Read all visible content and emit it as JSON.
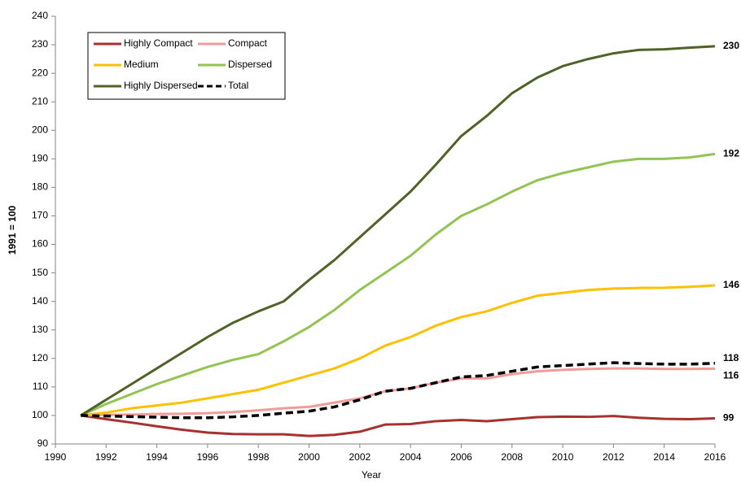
{
  "chart_data": {
    "type": "line",
    "x_label": "Year",
    "y_label": "1991 = 100",
    "x": [
      1991,
      1992,
      1993,
      1994,
      1995,
      1996,
      1997,
      1998,
      1999,
      2000,
      2001,
      2002,
      2003,
      2004,
      2005,
      2006,
      2007,
      2008,
      2009,
      2010,
      2011,
      2012,
      2013,
      2014,
      2015,
      2016
    ],
    "xlim": [
      1990,
      2016
    ],
    "xticks": [
      1990,
      1992,
      1994,
      1996,
      1998,
      2000,
      2002,
      2004,
      2006,
      2008,
      2010,
      2012,
      2014,
      2016
    ],
    "ylim": [
      90,
      240
    ],
    "yticks": [
      90,
      100,
      110,
      120,
      130,
      140,
      150,
      160,
      170,
      180,
      190,
      200,
      210,
      220,
      230,
      240
    ],
    "grid": false,
    "legend": "upper left",
    "series": [
      {
        "name": "Highly Compact",
        "color": "#a6312f",
        "dashed": false,
        "end_label": "99",
        "values": [
          100,
          98.7,
          97.5,
          96.2,
          95,
          94,
          93.5,
          93.4,
          93.4,
          92.8,
          93.2,
          94.3,
          96.8,
          97,
          98,
          98.4,
          98,
          98.7,
          99.4,
          99.6,
          99.5,
          99.8,
          99.2,
          98.8,
          98.7,
          99
        ]
      },
      {
        "name": "Compact",
        "color": "#f19c98",
        "dashed": false,
        "end_label": "116",
        "values": [
          100,
          100.2,
          100.3,
          100.5,
          100.6,
          100.8,
          101.2,
          101.8,
          102.5,
          103,
          104.5,
          106,
          108.5,
          109.5,
          111.5,
          113,
          113,
          114.5,
          115.5,
          116,
          116.3,
          116.5,
          116.5,
          116.3,
          116.3,
          116.4
        ]
      },
      {
        "name": "Medium",
        "color": "#ffc000",
        "dashed": false,
        "end_label": "146",
        "values": [
          100,
          101,
          102.5,
          103.5,
          104.5,
          106,
          107.5,
          109,
          111.5,
          114,
          116.5,
          120,
          124.5,
          127.5,
          131.5,
          134.5,
          136.5,
          139.5,
          142,
          143,
          144,
          144.5,
          144.7,
          144.8,
          145.1,
          145.6
        ]
      },
      {
        "name": "Dispersed",
        "color": "#92c353",
        "dashed": false,
        "end_label": "192",
        "values": [
          100,
          104,
          107.5,
          111,
          114,
          117,
          119.5,
          121.5,
          126,
          131,
          137,
          144,
          150,
          156,
          163.5,
          170,
          174,
          178.5,
          182.5,
          185,
          187,
          189,
          190,
          190,
          190.5,
          191.7
        ]
      },
      {
        "name": "Highly Dispersed",
        "color": "#4f6228",
        "dashed": false,
        "end_label": "230",
        "values": [
          100,
          105.5,
          111,
          116.5,
          122,
          127.5,
          132.5,
          136.5,
          140,
          147.5,
          154.5,
          162.5,
          170.5,
          178.5,
          188,
          198,
          205,
          213,
          218.5,
          222.5,
          225,
          227,
          228.2,
          228.4,
          229,
          229.5
        ]
      },
      {
        "name": "Total",
        "color": "#000000",
        "dashed": true,
        "end_label": "118",
        "values": [
          100,
          99.8,
          99.6,
          99.4,
          99.2,
          99.2,
          99.5,
          100,
          100.8,
          101.5,
          103,
          105.5,
          108.5,
          109.5,
          111.5,
          113.5,
          114,
          115.5,
          117,
          117.5,
          118,
          118.5,
          118.2,
          118,
          118,
          118.3
        ]
      }
    ]
  }
}
